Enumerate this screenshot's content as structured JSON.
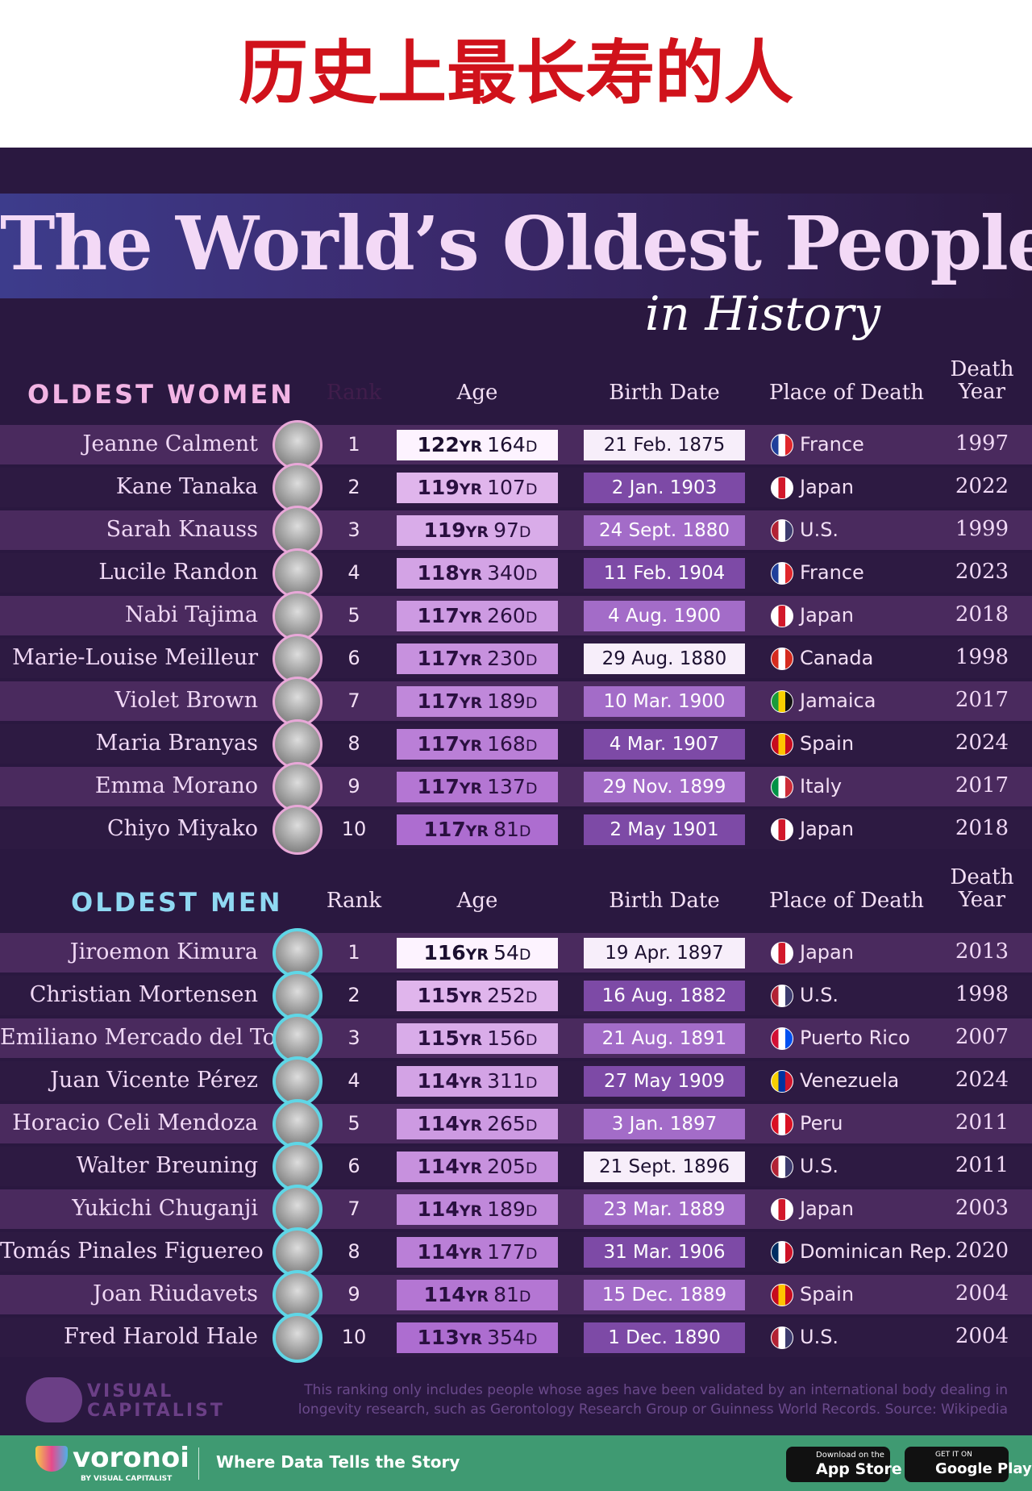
{
  "header": {
    "title": "历史上最长寿的人"
  },
  "infographic": {
    "title": "The World’s Oldest People",
    "subtitle": "in History"
  },
  "units": {
    "years": "YR",
    "days": "D"
  },
  "columns": {
    "rank": "Rank",
    "age": "Age",
    "birth": "Birth Date",
    "place": "Place of Death",
    "death": "Death Year"
  },
  "women": {
    "heading": "OLDEST WOMEN",
    "rows": [
      {
        "name": "Jeanne Calment",
        "rank": 1,
        "years": 122,
        "days": 164,
        "birth": "21 Feb. 1875",
        "place": "France",
        "death": 1997
      },
      {
        "name": "Kane Tanaka",
        "rank": 2,
        "years": 119,
        "days": 107,
        "birth": "2 Jan. 1903",
        "place": "Japan",
        "death": 2022
      },
      {
        "name": "Sarah Knauss",
        "rank": 3,
        "years": 119,
        "days": 97,
        "birth": "24 Sept. 1880",
        "place": "U.S.",
        "death": 1999
      },
      {
        "name": "Lucile Randon",
        "rank": 4,
        "years": 118,
        "days": 340,
        "birth": "11 Feb. 1904",
        "place": "France",
        "death": 2023
      },
      {
        "name": "Nabi Tajima",
        "rank": 5,
        "years": 117,
        "days": 260,
        "birth": "4 Aug. 1900",
        "place": "Japan",
        "death": 2018
      },
      {
        "name": "Marie-Louise Meilleur",
        "rank": 6,
        "years": 117,
        "days": 230,
        "birth": "29 Aug. 1880",
        "place": "Canada",
        "death": 1998
      },
      {
        "name": "Violet Brown",
        "rank": 7,
        "years": 117,
        "days": 189,
        "birth": "10 Mar. 1900",
        "place": "Jamaica",
        "death": 2017
      },
      {
        "name": "Maria Branyas",
        "rank": 8,
        "years": 117,
        "days": 168,
        "birth": "4 Mar. 1907",
        "place": "Spain",
        "death": 2024
      },
      {
        "name": "Emma Morano",
        "rank": 9,
        "years": 117,
        "days": 137,
        "birth": "29 Nov. 1899",
        "place": "Italy",
        "death": 2017
      },
      {
        "name": "Chiyo Miyako",
        "rank": 10,
        "years": 117,
        "days": 81,
        "birth": "2 May 1901",
        "place": "Japan",
        "death": 2018
      }
    ]
  },
  "men": {
    "heading": "OLDEST MEN",
    "rows": [
      {
        "name": "Jiroemon Kimura",
        "rank": 1,
        "years": 116,
        "days": 54,
        "birth": "19 Apr. 1897",
        "place": "Japan",
        "death": 2013
      },
      {
        "name": "Christian Mortensen",
        "rank": 2,
        "years": 115,
        "days": 252,
        "birth": "16 Aug. 1882",
        "place": "U.S.",
        "death": 1998
      },
      {
        "name": "Emiliano Mercado del Toro",
        "rank": 3,
        "years": 115,
        "days": 156,
        "birth": "21 Aug. 1891",
        "place": "Puerto Rico",
        "death": 2007
      },
      {
        "name": "Juan Vicente Pérez",
        "rank": 4,
        "years": 114,
        "days": 311,
        "birth": "27 May 1909",
        "place": "Venezuela",
        "death": 2024
      },
      {
        "name": "Horacio Celi Mendoza",
        "rank": 5,
        "years": 114,
        "days": 265,
        "birth": "3 Jan. 1897",
        "place": "Peru",
        "death": 2011
      },
      {
        "name": "Walter Breuning",
        "rank": 6,
        "years": 114,
        "days": 205,
        "birth": "21 Sept. 1896",
        "place": "U.S.",
        "death": 2011
      },
      {
        "name": "Yukichi Chuganji",
        "rank": 7,
        "years": 114,
        "days": 189,
        "birth": "23 Mar. 1889",
        "place": "Japan",
        "death": 2003
      },
      {
        "name": "Tomás Pinales Figuereo",
        "rank": 8,
        "years": 114,
        "days": 177,
        "birth": "31 Mar. 1906",
        "place": "Dominican Rep.",
        "death": 2020
      },
      {
        "name": "Joan Riudavets",
        "rank": 9,
        "years": 114,
        "days": 81,
        "birth": "15 Dec. 1889",
        "place": "Spain",
        "death": 2004
      },
      {
        "name": "Fred Harold Hale",
        "rank": 10,
        "years": 113,
        "days": 354,
        "birth": "1 Dec. 1890",
        "place": "U.S.",
        "death": 2004
      }
    ]
  },
  "footer": {
    "note": "This ranking only includes people whose ages have been validated by an international body dealing in longevity research, such as Gerontology Research Group or Guinness World Records. Source: Wikipedia",
    "brand_top": "VISUAL",
    "brand_bottom": "CAPITALIST",
    "voronoi": "voronoi",
    "voronoi_by": "BY VISUAL CAPITALIST",
    "tagline": "Where Data Tells the Story",
    "appstore_small": "Download on the",
    "appstore": "App Store",
    "play_small": "GET IT ON",
    "play": "Google Play"
  }
}
